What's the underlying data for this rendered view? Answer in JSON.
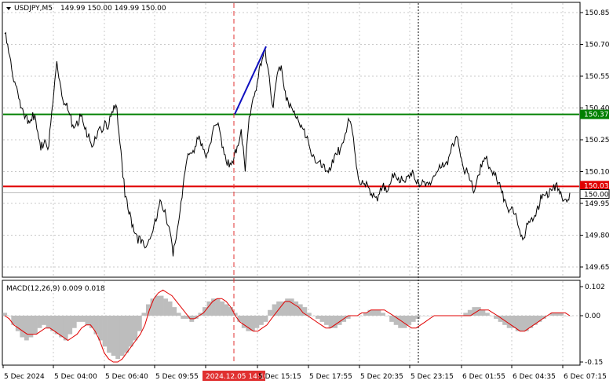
{
  "header": {
    "symbol": "USDJPY,M5",
    "ohlc": "149.99 150.00 149.99 150.00",
    "collapse_icon": "triangle-down-icon"
  },
  "macd_header": "MACD(12,26,9) 0.009 0.018",
  "colors": {
    "price_line": "#000000",
    "grid": "#c8c8c8",
    "green_level": "#008000",
    "red_level": "#e00000",
    "blue_trend": "#1010c0",
    "macd_hist": "#bdbdbd",
    "signal_line": "#e00000"
  },
  "chart_data": [
    {
      "type": "line",
      "title": "USDJPY,M5",
      "y_ticks": [
        "150.85",
        "150.70",
        "150.55",
        "150.40",
        "150.25",
        "150.10",
        "149.95",
        "149.80",
        "149.65"
      ],
      "ylim": [
        149.62,
        150.88
      ],
      "x_ticks": [
        "5 Dec 2024",
        "5 Dec 04:00",
        "5 Dec 06:40",
        "5 Dec 09:55",
        "2024.12.05 14:10",
        "5 Dec 15:15",
        "5 Dec 17:55",
        "5 Dec 20:35",
        "5 Dec 23:15",
        "6 Dec 01:55",
        "6 Dec 04:35",
        "6 Dec 07:15"
      ],
      "highlighted_x_tick": "2024.12.05 14:10",
      "levels": [
        {
          "label": "150.37",
          "value": 150.37,
          "color": "green"
        },
        {
          "label": "150.03",
          "value": 150.03,
          "color": "red"
        },
        {
          "label": "150.00",
          "value": 150.0,
          "color": "current"
        }
      ],
      "series": [
        {
          "values": [
            150.75,
            150.66,
            150.55,
            150.5,
            150.4,
            150.35,
            150.34,
            150.38,
            150.3,
            150.2,
            150.25,
            150.22,
            150.42,
            150.62,
            150.5,
            150.42,
            150.38,
            150.32,
            150.34,
            150.36,
            150.3,
            150.28,
            150.22,
            150.26,
            150.3,
            150.34,
            150.32,
            150.38,
            150.4,
            150.2,
            149.98,
            149.9,
            149.85,
            149.8,
            149.76,
            149.74,
            149.78,
            149.82,
            149.88,
            149.96,
            149.92,
            149.84,
            149.7,
            149.82,
            149.96,
            150.1,
            150.18,
            150.2,
            150.26,
            150.22,
            150.18,
            150.22,
            150.3,
            150.32,
            150.26,
            150.18,
            150.12,
            150.14,
            150.22,
            150.3,
            150.1,
            150.36,
            150.45,
            150.52,
            150.6,
            150.68,
            150.55,
            150.4,
            150.56,
            150.6,
            150.48,
            150.4,
            150.38,
            150.36,
            150.32,
            150.26,
            150.22,
            150.18,
            150.14,
            150.12,
            150.1,
            150.12,
            150.14,
            150.18,
            150.22,
            150.28,
            150.34,
            150.26,
            150.1,
            150.04,
            150.03,
            150.02,
            150.0,
            149.96,
            150.01,
            150.03,
            150.04,
            150.07,
            150.06,
            150.08,
            150.05,
            150.07,
            150.09,
            150.06,
            150.04,
            150.03,
            150.05,
            150.08,
            150.1,
            150.12,
            150.14,
            150.18,
            150.22,
            150.26,
            150.16,
            150.1,
            150.06,
            150.0,
            150.08,
            150.12,
            150.16,
            150.12,
            150.1,
            150.04,
            150.0,
            149.96,
            149.92,
            149.9,
            149.85,
            149.8,
            149.82,
            149.86,
            149.88,
            149.94,
            149.97,
            149.99,
            150.02,
            150.04,
            150.01,
            149.98,
            149.97,
            150.0
          ],
          "color": "#000000"
        }
      ],
      "trendline": {
        "start": 150.37,
        "end": 150.69
      }
    },
    {
      "type": "bar",
      "title": "MACD(12,26,9) 0.009 0.018",
      "y_ticks": [
        "0.102",
        "0.00",
        "-0.15"
      ],
      "ylim": [
        -0.16,
        0.11
      ],
      "series": [
        {
          "values": [
            0.01,
            0.0,
            -0.03,
            -0.05,
            -0.07,
            -0.08,
            -0.07,
            -0.06,
            -0.04,
            -0.03,
            -0.04,
            -0.05,
            -0.06,
            -0.07,
            -0.08,
            -0.06,
            -0.04,
            -0.02,
            -0.02,
            -0.03,
            -0.04,
            -0.06,
            -0.08,
            -0.1,
            -0.12,
            -0.13,
            -0.14,
            -0.13,
            -0.12,
            -0.1,
            -0.08,
            -0.05,
            0.01,
            0.04,
            0.06,
            0.07,
            0.07,
            0.06,
            0.05,
            0.03,
            0.01,
            -0.01,
            -0.01,
            -0.02,
            -0.01,
            0.01,
            0.03,
            0.05,
            0.06,
            0.06,
            0.05,
            0.04,
            0.03,
            0.01,
            -0.02,
            -0.04,
            -0.05,
            -0.05,
            -0.04,
            -0.03,
            -0.02,
            0.02,
            0.04,
            0.05,
            0.05,
            0.06,
            0.06,
            0.05,
            0.04,
            0.03,
            0.01,
            0.0,
            -0.01,
            -0.02,
            -0.03,
            -0.04,
            -0.04,
            -0.03,
            -0.02,
            -0.01,
            0.0,
            0.0,
            0.0,
            0.01,
            0.02,
            0.02,
            0.02,
            0.01,
            0.0,
            -0.02,
            -0.03,
            -0.04,
            -0.04,
            -0.03,
            -0.02,
            -0.01,
            0.0,
            0.0,
            0.0,
            0.0,
            0.0,
            0.0,
            0.0,
            0.0,
            0.0,
            0.0,
            0.01,
            0.02,
            0.03,
            0.03,
            0.02,
            0.01,
            0.0,
            -0.01,
            -0.02,
            -0.03,
            -0.04,
            -0.04,
            -0.05,
            -0.05,
            -0.05,
            -0.04,
            -0.03,
            -0.02,
            -0.01,
            0.0,
            0.01,
            0.01,
            0.01,
            0.0,
            0.0
          ],
          "color": "#bdbdbd"
        },
        {
          "values": [
            0.0,
            -0.01,
            -0.03,
            -0.04,
            -0.05,
            -0.06,
            -0.06,
            -0.06,
            -0.05,
            -0.04,
            -0.04,
            -0.05,
            -0.06,
            -0.07,
            -0.08,
            -0.07,
            -0.06,
            -0.04,
            -0.03,
            -0.03,
            -0.05,
            -0.08,
            -0.12,
            -0.14,
            -0.15,
            -0.15,
            -0.14,
            -0.12,
            -0.1,
            -0.08,
            -0.06,
            -0.03,
            0.02,
            0.06,
            0.08,
            0.09,
            0.08,
            0.07,
            0.05,
            0.03,
            0.01,
            -0.01,
            -0.01,
            0.0,
            0.01,
            0.03,
            0.05,
            0.06,
            0.06,
            0.05,
            0.03,
            0.0,
            -0.02,
            -0.03,
            -0.04,
            -0.05,
            -0.05,
            -0.04,
            -0.03,
            -0.01,
            0.01,
            0.03,
            0.05,
            0.05,
            0.04,
            0.03,
            0.01,
            0.0,
            -0.01,
            -0.02,
            -0.03,
            -0.04,
            -0.04,
            -0.03,
            -0.02,
            -0.01,
            0.0,
            0.0,
            0.0,
            0.01,
            0.01,
            0.02,
            0.02,
            0.02,
            0.02,
            0.01,
            0.0,
            -0.01,
            -0.02,
            -0.03,
            -0.04,
            -0.04,
            -0.03,
            -0.02,
            -0.01,
            0.0,
            0.0,
            0.0,
            0.0,
            0.0,
            0.0,
            0.0,
            0.0,
            0.0,
            0.01,
            0.02,
            0.02,
            0.02,
            0.01,
            0.0,
            -0.01,
            -0.02,
            -0.03,
            -0.04,
            -0.05,
            -0.05,
            -0.04,
            -0.03,
            -0.02,
            -0.01,
            0.0,
            0.01,
            0.01,
            0.01,
            0.01,
            0.0
          ],
          "color": "#e00000"
        }
      ]
    }
  ]
}
